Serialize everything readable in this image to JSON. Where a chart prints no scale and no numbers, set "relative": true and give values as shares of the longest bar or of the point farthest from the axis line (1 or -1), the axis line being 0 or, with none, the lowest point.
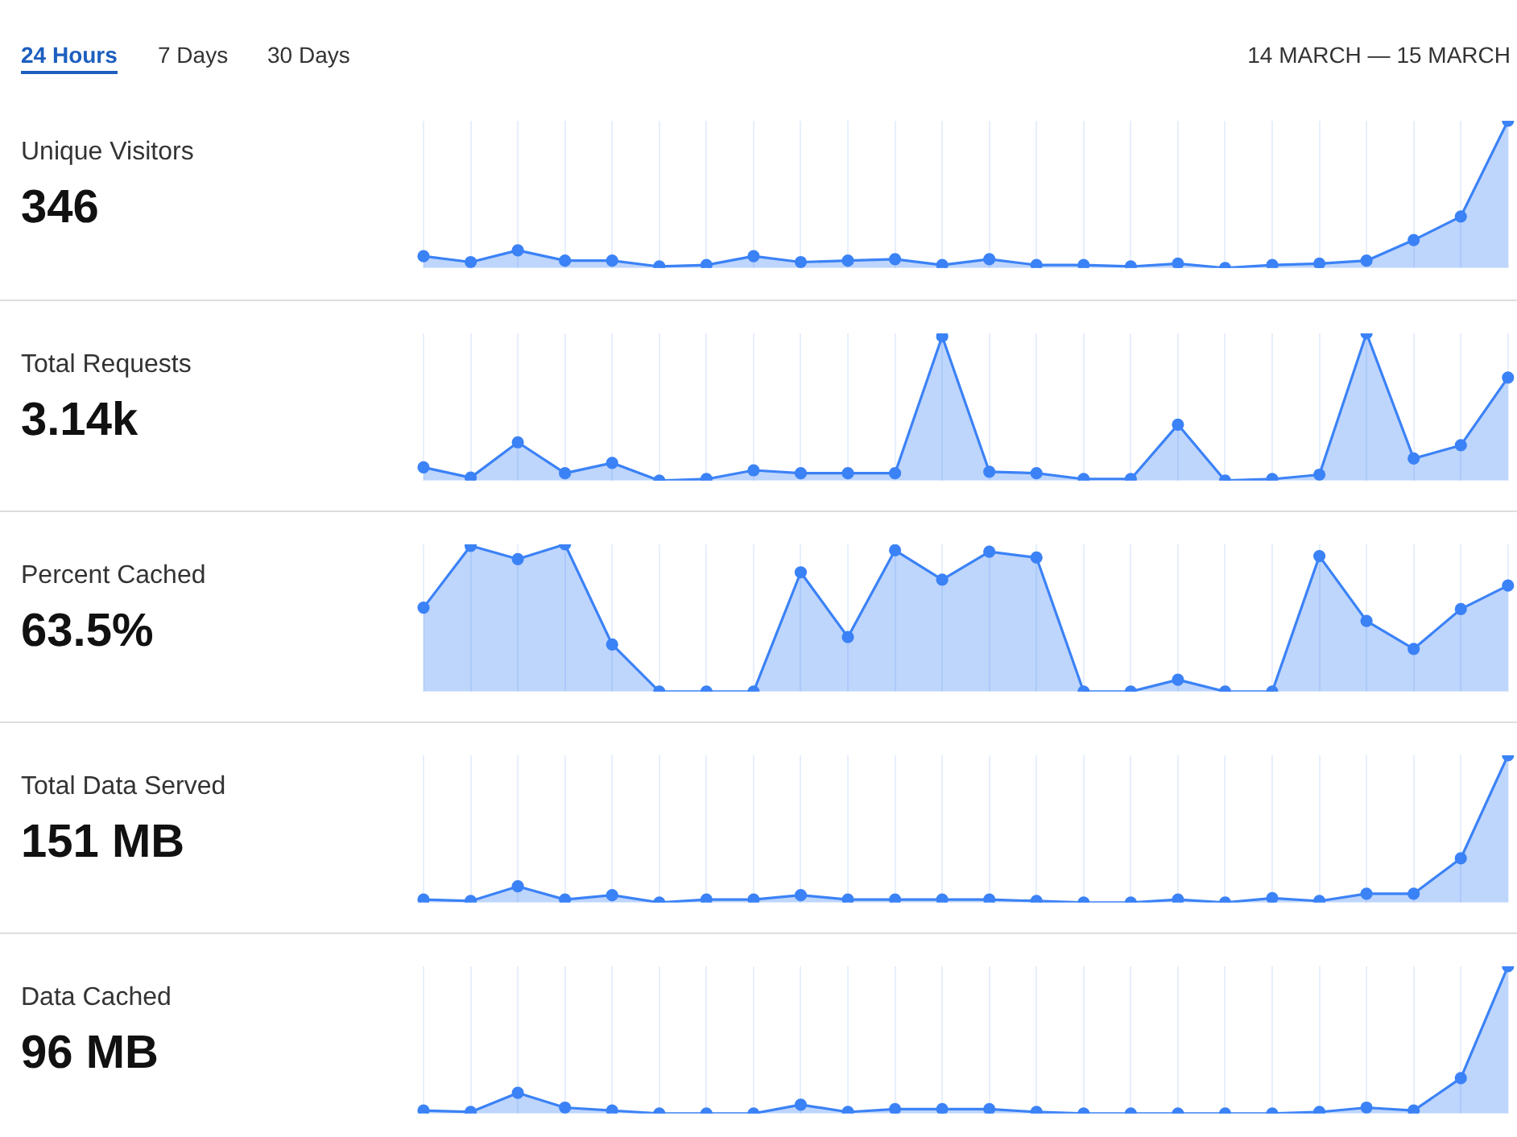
{
  "chart_data": [
    {
      "type": "area",
      "ylabel": "Unique Visitors",
      "annotations": [
        "346",
        "24 Hours",
        "7 Days",
        "30 Days",
        "14 MARCH — 15 MARCH"
      ],
      "relative": true,
      "grid": "x",
      "marker": "circle",
      "legend": false,
      "tick_labels": false,
      "categories": [
        null,
        null,
        null,
        null,
        null,
        null,
        null,
        null,
        null,
        null,
        null,
        null,
        null,
        null,
        null,
        null,
        null,
        null,
        null,
        null,
        null,
        null,
        null,
        null
      ],
      "series": [
        {
          "color": "#3b82f6",
          "values": [
            0.08,
            0.04,
            0.12,
            0.05,
            0.05,
            0.01,
            0.02,
            0.08,
            0.04,
            0.05,
            0.06,
            0.02,
            0.06,
            0.02,
            0.02,
            0.01,
            0.03,
            0,
            0.02,
            0.03,
            0.05,
            0.19,
            0.35,
            1
          ]
        }
      ]
    },
    {
      "type": "area",
      "ylabel": "Total Requests",
      "annotations": [
        "3.14k"
      ],
      "relative": true,
      "grid": "x",
      "marker": "circle",
      "legend": false,
      "tick_labels": false,
      "categories": [
        null,
        null,
        null,
        null,
        null,
        null,
        null,
        null,
        null,
        null,
        null,
        null,
        null,
        null,
        null,
        null,
        null,
        null,
        null,
        null,
        null,
        null,
        null,
        null
      ],
      "series": [
        {
          "color": "#3b82f6",
          "values": [
            0.09,
            0.02,
            0.26,
            0.05,
            0.12,
            0,
            0.01,
            0.07,
            0.05,
            0.05,
            0.05,
            0.98,
            0.06,
            0.05,
            0.01,
            0.01,
            0.38,
            0,
            0.01,
            0.04,
            1,
            0.15,
            0.24,
            0.7
          ]
        }
      ]
    },
    {
      "type": "area",
      "ylabel": "Percent Cached",
      "annotations": [
        "63.5%"
      ],
      "relative": true,
      "grid": "x",
      "marker": "circle",
      "legend": false,
      "tick_labels": false,
      "categories": [
        null,
        null,
        null,
        null,
        null,
        null,
        null,
        null,
        null,
        null,
        null,
        null,
        null,
        null,
        null,
        null,
        null,
        null,
        null,
        null,
        null,
        null,
        null,
        null
      ],
      "series": [
        {
          "color": "#3b82f6",
          "values": [
            0.57,
            0.99,
            0.9,
            1,
            0.32,
            0,
            0,
            0,
            0.81,
            0.37,
            0.96,
            0.76,
            0.95,
            0.91,
            0,
            0,
            0.08,
            0,
            0,
            0.92,
            0.48,
            0.29,
            0.56,
            0.72
          ]
        }
      ]
    },
    {
      "type": "area",
      "ylabel": "Total Data Served",
      "annotations": [
        "151 MB"
      ],
      "relative": true,
      "grid": "x",
      "marker": "circle",
      "legend": false,
      "tick_labels": false,
      "categories": [
        null,
        null,
        null,
        null,
        null,
        null,
        null,
        null,
        null,
        null,
        null,
        null,
        null,
        null,
        null,
        null,
        null,
        null,
        null,
        null,
        null,
        null,
        null,
        null
      ],
      "series": [
        {
          "color": "#3b82f6",
          "values": [
            0.02,
            0.01,
            0.11,
            0.02,
            0.05,
            0,
            0.02,
            0.02,
            0.05,
            0.02,
            0.02,
            0.02,
            0.02,
            0.01,
            0,
            0,
            0.02,
            0,
            0.03,
            0.01,
            0.06,
            0.06,
            0.3,
            1
          ]
        }
      ]
    },
    {
      "type": "area",
      "ylabel": "Data Cached",
      "annotations": [
        "96 MB"
      ],
      "relative": true,
      "grid": "x",
      "marker": "circle",
      "legend": false,
      "tick_labels": false,
      "categories": [
        null,
        null,
        null,
        null,
        null,
        null,
        null,
        null,
        null,
        null,
        null,
        null,
        null,
        null,
        null,
        null,
        null,
        null,
        null,
        null,
        null,
        null,
        null,
        null
      ],
      "series": [
        {
          "color": "#3b82f6",
          "values": [
            0.02,
            0.01,
            0.14,
            0.04,
            0.02,
            0,
            0,
            0,
            0.06,
            0.01,
            0.03,
            0.03,
            0.03,
            0.01,
            0,
            0,
            0,
            0,
            0,
            0.01,
            0.04,
            0.02,
            0.24,
            1
          ]
        }
      ]
    }
  ]
}
